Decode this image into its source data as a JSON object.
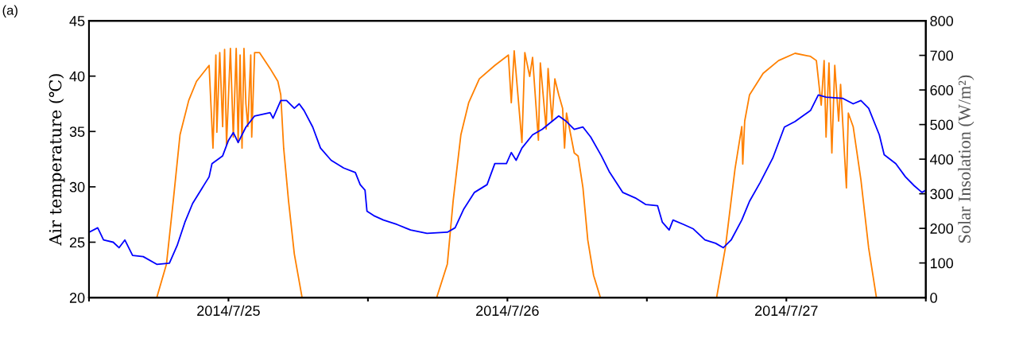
{
  "chart_data": {
    "type": "line",
    "ylabel": "Air temperature (℃)",
    "y2label": "Solar Insolation (W/m²)",
    "annotations": [
      "(a)"
    ],
    "xlim": [
      "2014-07-25T00:00",
      "2014-07-28T00:00"
    ],
    "xticks": [
      {
        "value": "2014-07-25T00:00",
        "label": null
      },
      {
        "value": "2014-07-25T12:00",
        "label": "2014/7/25"
      },
      {
        "value": "2014-07-26T00:00",
        "label": null
      },
      {
        "value": "2014-07-26T12:00",
        "label": "2014/7/26"
      },
      {
        "value": "2014-07-27T00:00",
        "label": null
      },
      {
        "value": "2014-07-27T12:00",
        "label": "2014/7/27"
      },
      {
        "value": "2014-07-28T00:00",
        "label": null
      }
    ],
    "ylim": [
      20,
      45
    ],
    "yticks": [
      20,
      25,
      30,
      35,
      40,
      45
    ],
    "y2lim": [
      0,
      800
    ],
    "y2ticks": [
      0,
      100,
      200,
      300,
      400,
      500,
      600,
      700,
      800
    ],
    "grid": false,
    "marker": "none",
    "line_style": "solid",
    "series": [
      {
        "color": "#ff8000",
        "axis": "y2",
        "x": [
          "2014-07-25T00:00",
          "2014-07-25T05:50",
          "2014-07-25T06:40",
          "2014-07-25T07:15",
          "2014-07-25T07:50",
          "2014-07-25T08:35",
          "2014-07-25T09:15",
          "2014-07-25T10:20",
          "2014-07-25T10:40",
          "2014-07-25T10:55",
          "2014-07-25T11:00",
          "2014-07-25T11:15",
          "2014-07-25T11:30",
          "2014-07-25T11:40",
          "2014-07-25T11:50",
          "2014-07-25T12:10",
          "2014-07-25T12:25",
          "2014-07-25T12:40",
          "2014-07-25T12:50",
          "2014-07-25T13:00",
          "2014-07-25T13:10",
          "2014-07-25T13:20",
          "2014-07-25T13:30",
          "2014-07-25T13:40",
          "2014-07-25T13:55",
          "2014-07-25T14:00",
          "2014-07-25T14:15",
          "2014-07-25T14:40",
          "2014-07-25T15:35",
          "2014-07-25T16:15",
          "2014-07-25T16:30",
          "2014-07-25T16:45",
          "2014-07-25T17:10",
          "2014-07-25T17:40",
          "2014-07-25T18:20",
          "2014-07-26T05:55",
          "2014-07-26T06:50",
          "2014-07-26T07:20",
          "2014-07-26T08:00",
          "2014-07-26T08:40",
          "2014-07-26T09:35",
          "2014-07-26T10:55",
          "2014-07-26T12:05",
          "2014-07-26T12:20",
          "2014-07-26T12:35",
          "2014-07-26T13:15",
          "2014-07-26T13:30",
          "2014-07-26T13:55",
          "2014-07-26T14:10",
          "2014-07-26T14:40",
          "2014-07-26T14:50",
          "2014-07-26T15:20",
          "2014-07-26T15:30",
          "2014-07-26T15:50",
          "2014-07-26T16:05",
          "2014-07-26T16:25",
          "2014-07-26T16:45",
          "2014-07-26T16:55",
          "2014-07-26T17:05",
          "2014-07-26T17:45",
          "2014-07-26T18:05",
          "2014-07-26T18:30",
          "2014-07-26T18:55",
          "2014-07-26T19:25",
          "2014-07-26T20:00",
          "2014-07-27T06:00",
          "2014-07-27T06:45",
          "2014-07-27T07:35",
          "2014-07-27T08:10",
          "2014-07-27T08:15",
          "2014-07-27T08:25",
          "2014-07-27T08:50",
          "2014-07-27T10:00",
          "2014-07-27T11:20",
          "2014-07-27T12:45",
          "2014-07-27T14:05",
          "2014-07-27T14:35",
          "2014-07-27T15:00",
          "2014-07-27T15:15",
          "2014-07-27T15:25",
          "2014-07-27T15:40",
          "2014-07-27T15:55",
          "2014-07-27T16:10",
          "2014-07-27T16:30",
          "2014-07-27T16:40",
          "2014-07-27T17:10",
          "2014-07-27T17:20",
          "2014-07-27T17:45",
          "2014-07-27T18:25",
          "2014-07-27T19:05",
          "2014-07-27T19:45",
          "2014-07-28T00:00"
        ],
        "values": [
          0,
          0,
          97,
          280,
          471,
          570,
          625,
          671,
          432,
          701,
          478,
          708,
          494,
          717,
          441,
          720,
          464,
          720,
          448,
          701,
          432,
          720,
          560,
          494,
          701,
          464,
          708,
          708,
          662,
          625,
          586,
          432,
          280,
          126,
          0,
          0,
          97,
          280,
          471,
          563,
          632,
          671,
          701,
          563,
          713,
          448,
          708,
          639,
          694,
          455,
          678,
          487,
          662,
          510,
          632,
          586,
          547,
          432,
          533,
          418,
          409,
          317,
          166,
          64,
          0,
          0,
          143,
          372,
          494,
          386,
          510,
          586,
          648,
          685,
          706,
          697,
          685,
          556,
          685,
          464,
          678,
          418,
          671,
          510,
          616,
          317,
          533,
          494,
          340,
          143,
          0,
          0
        ]
      },
      {
        "color": "#0000ff",
        "x": [
          "2014-07-25T00:00",
          "2014-07-25T00:45",
          "2014-07-25T01:15",
          "2014-07-25T02:05",
          "2014-07-25T02:35",
          "2014-07-25T03:05",
          "2014-07-25T03:45",
          "2014-07-25T04:40",
          "2014-07-25T05:50",
          "2014-07-25T06:55",
          "2014-07-25T07:35",
          "2014-07-25T08:15",
          "2014-07-25T08:55",
          "2014-07-25T09:55",
          "2014-07-25T10:20",
          "2014-07-25T10:35",
          "2014-07-25T11:30",
          "2014-07-25T12:00",
          "2014-07-25T12:25",
          "2014-07-25T12:50",
          "2014-07-25T13:30",
          "2014-07-25T14:15",
          "2014-07-25T15:35",
          "2014-07-25T15:50",
          "2014-07-25T16:30",
          "2014-07-25T17:00",
          "2014-07-25T17:40",
          "2014-07-25T18:05",
          "2014-07-25T18:30",
          "2014-07-25T19:15",
          "2014-07-25T19:55",
          "2014-07-25T20:50",
          "2014-07-25T21:55",
          "2014-07-25T22:55",
          "2014-07-25T23:20",
          "2014-07-25T23:45",
          "2014-07-25T23:55",
          "2014-07-26T00:30",
          "2014-07-26T01:20",
          "2014-07-26T02:30",
          "2014-07-26T03:40",
          "2014-07-26T05:05",
          "2014-07-26T06:50",
          "2014-07-26T07:30",
          "2014-07-26T08:15",
          "2014-07-26T09:10",
          "2014-07-26T10:15",
          "2014-07-26T10:55",
          "2014-07-26T11:55",
          "2014-07-26T12:20",
          "2014-07-26T12:45",
          "2014-07-26T13:15",
          "2014-07-26T14:10",
          "2014-07-26T15:00",
          "2014-07-26T16:25",
          "2014-07-26T17:05",
          "2014-07-26T17:45",
          "2014-07-26T18:30",
          "2014-07-26T19:10",
          "2014-07-26T20:05",
          "2014-07-26T20:45",
          "2014-07-26T21:55",
          "2014-07-26T23:00",
          "2014-07-26T23:55",
          "2014-07-27T00:55",
          "2014-07-27T01:20",
          "2014-07-27T01:55",
          "2014-07-27T02:15",
          "2014-07-27T03:10",
          "2014-07-27T04:00",
          "2014-07-27T05:00",
          "2014-07-27T05:55",
          "2014-07-27T06:35",
          "2014-07-27T07:15",
          "2014-07-27T08:10",
          "2014-07-27T08:50",
          "2014-07-27T09:45",
          "2014-07-27T10:50",
          "2014-07-27T11:50",
          "2014-07-27T12:45",
          "2014-07-27T13:25",
          "2014-07-27T14:05",
          "2014-07-27T14:45",
          "2014-07-27T15:25",
          "2014-07-27T16:50",
          "2014-07-27T17:45",
          "2014-07-27T18:25",
          "2014-07-27T19:05",
          "2014-07-27T20:00",
          "2014-07-27T20:25",
          "2014-07-27T21:25",
          "2014-07-27T22:15",
          "2014-07-27T23:00",
          "2014-07-27T23:40",
          "2014-07-28T00:00"
        ],
        "values": [
          25.9,
          26.3,
          25.2,
          25.0,
          24.5,
          25.2,
          23.8,
          23.7,
          23.0,
          23.1,
          24.7,
          26.8,
          28.5,
          30.2,
          30.9,
          32.1,
          32.8,
          34.2,
          34.9,
          34.0,
          35.4,
          36.4,
          36.7,
          36.2,
          37.8,
          37.8,
          37.1,
          37.5,
          36.9,
          35.4,
          33.5,
          32.4,
          31.7,
          31.3,
          30.2,
          29.7,
          27.8,
          27.4,
          27.0,
          26.6,
          26.1,
          25.8,
          25.9,
          26.3,
          28.0,
          29.5,
          30.2,
          32.1,
          32.1,
          33.1,
          32.4,
          33.5,
          34.7,
          35.2,
          36.4,
          35.9,
          35.2,
          35.4,
          34.5,
          32.8,
          31.4,
          29.5,
          29.0,
          28.4,
          28.3,
          26.8,
          26.1,
          27.0,
          26.6,
          26.2,
          25.2,
          24.9,
          24.5,
          25.2,
          27.0,
          28.7,
          30.4,
          32.6,
          35.4,
          35.9,
          36.4,
          36.9,
          38.3,
          38.1,
          38.0,
          37.5,
          37.8,
          37.1,
          34.7,
          32.9,
          32.1,
          30.9,
          30.1,
          29.5,
          29.7
        ]
      }
    ]
  }
}
